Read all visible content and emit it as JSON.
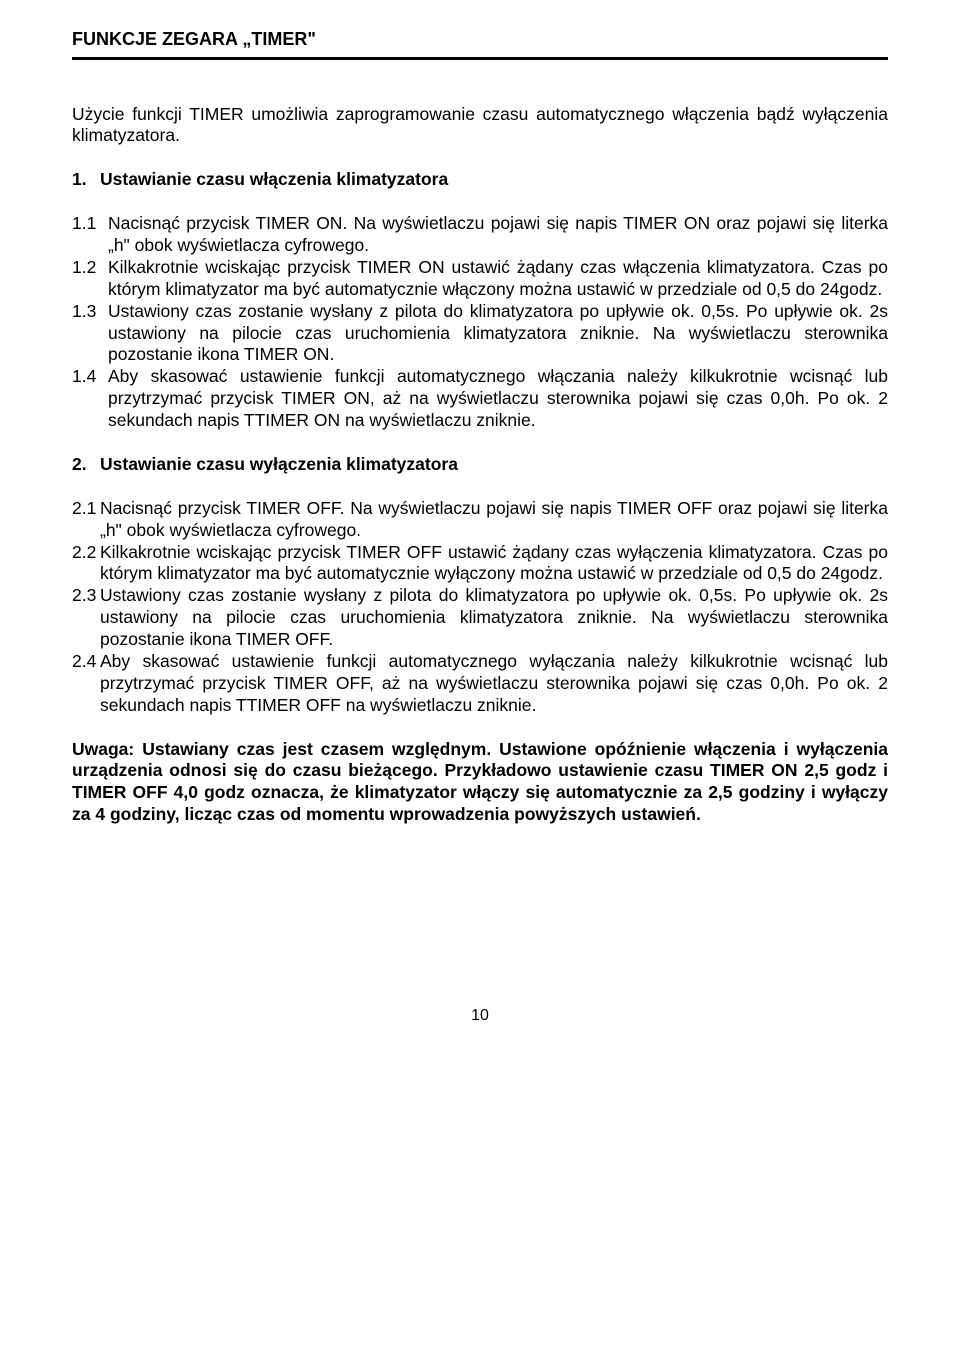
{
  "title": "FUNKCJE ZEGARA „TIMER\"",
  "intro": "Użycie funkcji TIMER umożliwia zaprogramowanie czasu automatycznego włączenia bądź wyłączenia klimatyzatora.",
  "section1": {
    "num": "1.",
    "heading": "Ustawianie czasu włączenia klimatyzatora",
    "items": [
      {
        "num": "1.1",
        "text": "Nacisnąć przycisk TIMER ON. Na wyświetlaczu pojawi się napis TIMER ON oraz pojawi się literka „h\" obok wyświetlacza cyfrowego."
      },
      {
        "num": "1.2",
        "text": "Kilkakrotnie wciskając przycisk TIMER ON ustawić żądany czas włączenia klimatyzatora. Czas po którym klimatyzator ma być automatycznie włączony można ustawić w przedziale od 0,5  do 24godz."
      },
      {
        "num": "1.3",
        "text": "Ustawiony czas zostanie wysłany z pilota do klimatyzatora po upływie ok. 0,5s. Po upływie ok. 2s ustawiony na pilocie czas uruchomienia klimatyzatora zniknie. Na wyświetlaczu sterownika pozostanie ikona TIMER ON."
      },
      {
        "num": "1.4",
        "text": "Aby skasować ustawienie funkcji automatycznego włączania należy kilkukrotnie wcisnąć lub przytrzymać przycisk TIMER ON, aż na wyświetlaczu sterownika pojawi się czas 0,0h. Po ok. 2 sekundach napis TTIMER ON  na wyświetlaczu zniknie."
      }
    ]
  },
  "section2": {
    "num": "2.",
    "heading": "Ustawianie czasu wyłączenia klimatyzatora",
    "items": [
      {
        "num": "2.1",
        "text": "Nacisnąć przycisk TIMER OFF. Na wyświetlaczu pojawi się napis TIMER OFF oraz pojawi się literka „h\" obok wyświetlacza cyfrowego."
      },
      {
        "num": "2.2",
        "text": "Kilkakrotnie wciskając przycisk TIMER OFF ustawić żądany czas wyłączenia klimatyzatora. Czas po którym klimatyzator ma być automatycznie wyłączony można ustawić w przedziale od 0,5  do 24godz."
      },
      {
        "num": "2.3",
        "text": "Ustawiony czas zostanie wysłany z pilota do klimatyzatora po upływie ok. 0,5s. Po upływie ok. 2s ustawiony na pilocie czas uruchomienia klimatyzatora zniknie. Na wyświetlaczu sterownika pozostanie ikona TIMER OFF."
      },
      {
        "num": "2.4",
        "text": "Aby skasować ustawienie funkcji automatycznego wyłączania należy kilkukrotnie wcisnąć lub przytrzymać przycisk TIMER OFF, aż na wyświetlaczu sterownika pojawi się czas 0,0h. Po ok. 2 sekundach napis TTIMER OFF  na wyświetlaczu zniknie."
      }
    ]
  },
  "note": "Uwaga: Ustawiany czas jest czasem względnym. Ustawione opóźnienie włączenia i wyłączenia urządzenia odnosi się do czasu bieżącego. Przykładowo ustawienie czasu TIMER ON 2,5 godz i TIMER OFF 4,0 godz oznacza, że klimatyzator włączy się automatycznie za 2,5 godziny i wyłączy za 4 godziny, licząc czas od momentu wprowadzenia powyższych ustawień.",
  "pageNumber": "10"
}
